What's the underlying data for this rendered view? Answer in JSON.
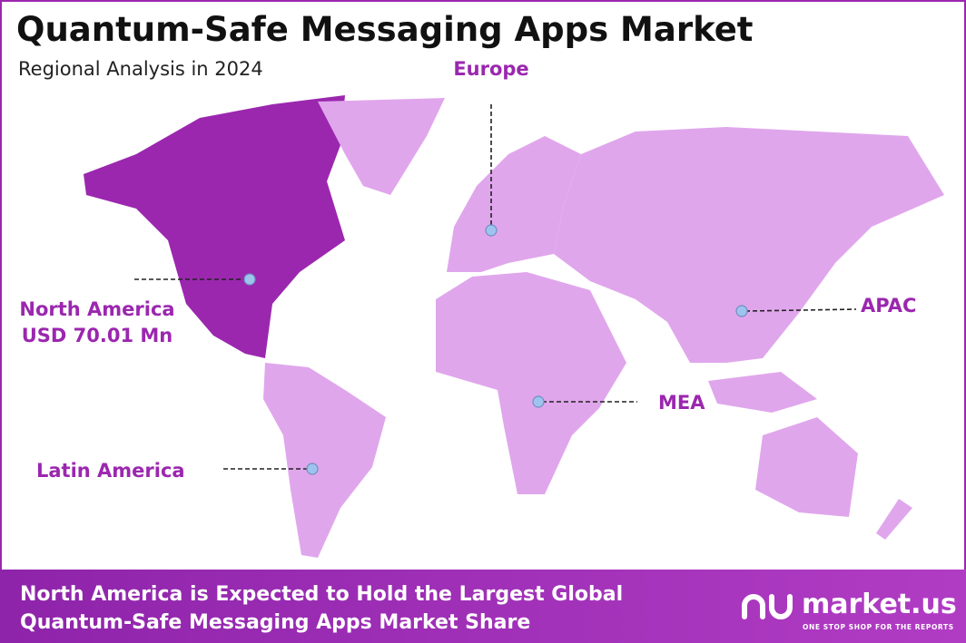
{
  "header": {
    "title": "Quantum-Safe Messaging Apps Market",
    "subtitle": "Regional Analysis in 2024"
  },
  "regions": [
    {
      "name": "North America",
      "value": "USD 70.01 Mn",
      "highlighted": true
    },
    {
      "name": "Europe",
      "highlighted": false
    },
    {
      "name": "APAC",
      "highlighted": false
    },
    {
      "name": "MEA",
      "highlighted": false
    },
    {
      "name": "Latin America",
      "highlighted": false
    }
  ],
  "colors": {
    "highlight": "#9b27af",
    "base": "#e0a6ec"
  },
  "footer": {
    "lines": [
      "North America is Expected to Hold the Largest Global",
      "Quantum-Safe Messaging Apps Market Share"
    ]
  },
  "logo": {
    "name": "market.us",
    "tagline": "ONE STOP SHOP FOR THE REPORTS"
  }
}
